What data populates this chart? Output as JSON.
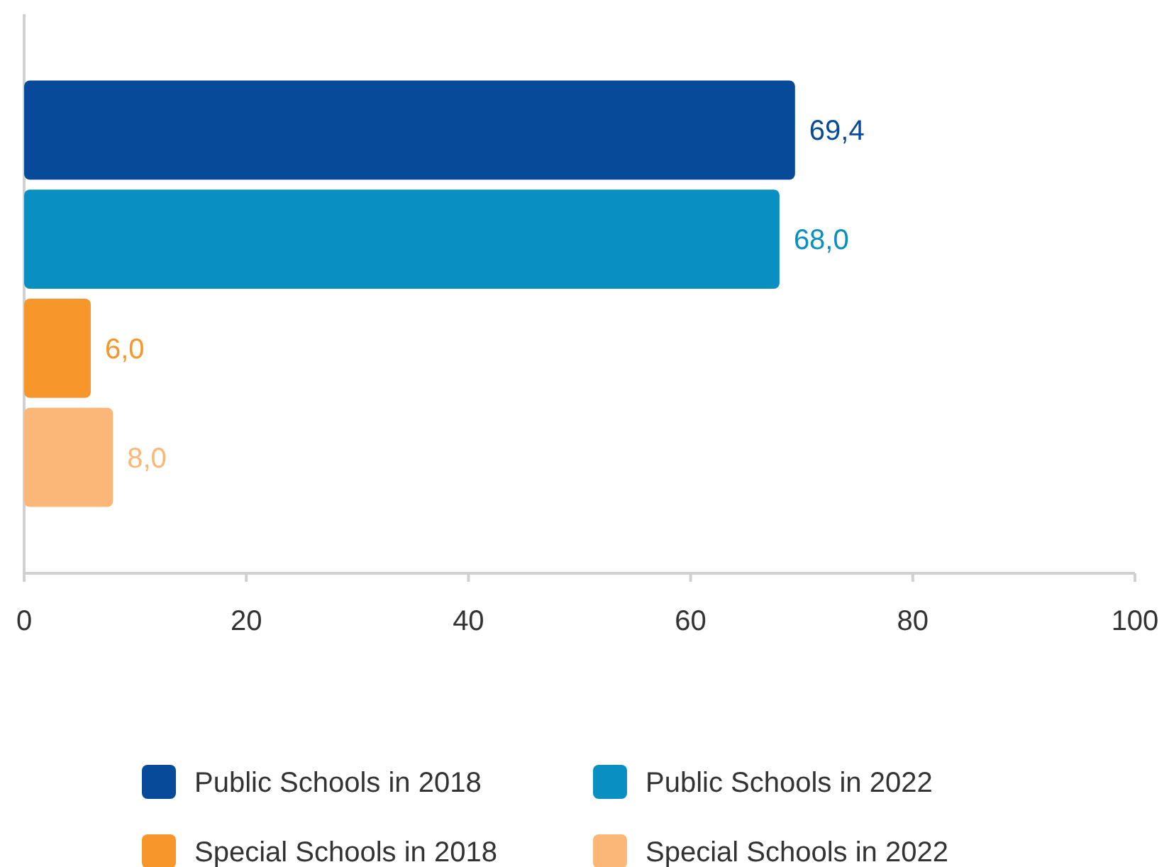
{
  "chart_data": {
    "type": "bar",
    "orientation": "horizontal",
    "categories": [
      null
    ],
    "series": [
      {
        "name": "Public Schools in 2018",
        "color": "#074a9a",
        "values": [
          69.4
        ],
        "value_labels": [
          "69,4"
        ]
      },
      {
        "name": "Public Schools in 2022",
        "color": "#0a8fc2",
        "values": [
          68.0
        ],
        "value_labels": [
          "68,0"
        ]
      },
      {
        "name": "Special Schools in 2018",
        "color": "#f7962b",
        "values": [
          6.0
        ],
        "value_labels": [
          "6,0"
        ]
      },
      {
        "name": "Special Schools in 2022",
        "color": "#fbb777",
        "values": [
          8.0
        ],
        "value_labels": [
          "8,0"
        ]
      }
    ],
    "xlim": [
      0,
      100
    ],
    "xticks": [
      0,
      20,
      40,
      60,
      80,
      100
    ],
    "grid": false,
    "legend": "bottom"
  }
}
